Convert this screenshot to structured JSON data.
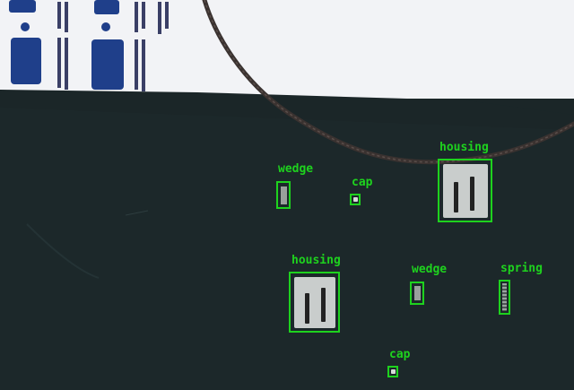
{
  "detections": [
    {
      "label": "wedge"
    },
    {
      "label": "cap"
    },
    {
      "label": "housing"
    },
    {
      "label": "housing"
    },
    {
      "label": "wedge"
    },
    {
      "label": "spring"
    },
    {
      "label": "cap"
    }
  ],
  "colors": {
    "box": "#1ed21e",
    "mat": "#1b2628",
    "poster": "#f2f3f6",
    "logo": "#1f3f8a"
  },
  "icons": {
    "poster-logo": "paw-print-logo",
    "cable": "cable"
  }
}
